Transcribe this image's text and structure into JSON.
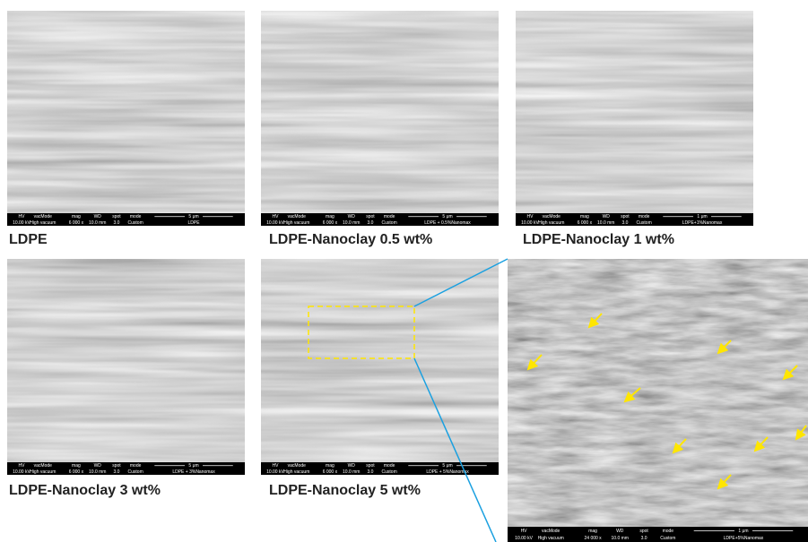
{
  "panels": [
    {
      "caption": "LDPE",
      "info_bar": {
        "headers": [
          "HV",
          "vacMode",
          "mag",
          "WD",
          "spot",
          "mode"
        ],
        "values": [
          "10.00 kV",
          "High vacuum",
          "6 000 x",
          "10.0 mm",
          "3.0",
          "Custom"
        ],
        "scale": "5 μm",
        "sample": "LDPE"
      }
    },
    {
      "caption": "LDPE-Nanoclay 0.5 wt%",
      "info_bar": {
        "headers": [
          "HV",
          "vacMode",
          "mag",
          "WD",
          "spot",
          "mode"
        ],
        "values": [
          "10.00 kV",
          "High vacuum",
          "6 000 x",
          "10.0 mm",
          "3.0",
          "Custom"
        ],
        "scale": "5 μm",
        "sample": "LDPE + 0.5%Nanomax"
      }
    },
    {
      "caption": "LDPE-Nanoclay 1 wt%",
      "info_bar": {
        "headers": [
          "HV",
          "vacMode",
          "mag",
          "WD",
          "spot",
          "mode"
        ],
        "values": [
          "10.00 kV",
          "High vacuum",
          "6 000 x",
          "10.0 mm",
          "3.0",
          "Custom"
        ],
        "scale": "1 μm",
        "sample": "LDPE+1%Nanomax"
      }
    },
    {
      "caption": "LDPE-Nanoclay 3 wt%",
      "info_bar": {
        "headers": [
          "HV",
          "vacMode",
          "mag",
          "WD",
          "spot",
          "mode"
        ],
        "values": [
          "10.00 kV",
          "High vacuum",
          "6 000 x",
          "10.0 mm",
          "3.0",
          "Custom"
        ],
        "scale": "5 μm",
        "sample": "LDPE + 3%Nanomax"
      }
    },
    {
      "caption": "LDPE-Nanoclay 5 wt%",
      "info_bar": {
        "headers": [
          "HV",
          "vacMode",
          "mag",
          "WD",
          "spot",
          "mode"
        ],
        "values": [
          "10.00 kV",
          "High vacuum",
          "6 000 x",
          "10.0 mm",
          "3.0",
          "Custom"
        ],
        "scale": "5 μm",
        "sample": "LDPE + 5%Nanomax"
      }
    },
    {
      "info_bar": {
        "headers": [
          "HV",
          "vacMode",
          "mag",
          "WD",
          "spot",
          "mode"
        ],
        "values": [
          "10.00 kV",
          "High vacuum",
          "24 000 x",
          "10.0 mm",
          "3.0",
          "Custom"
        ],
        "scale": "1 μm",
        "sample": "LDPE+5%Nanomax"
      }
    }
  ]
}
